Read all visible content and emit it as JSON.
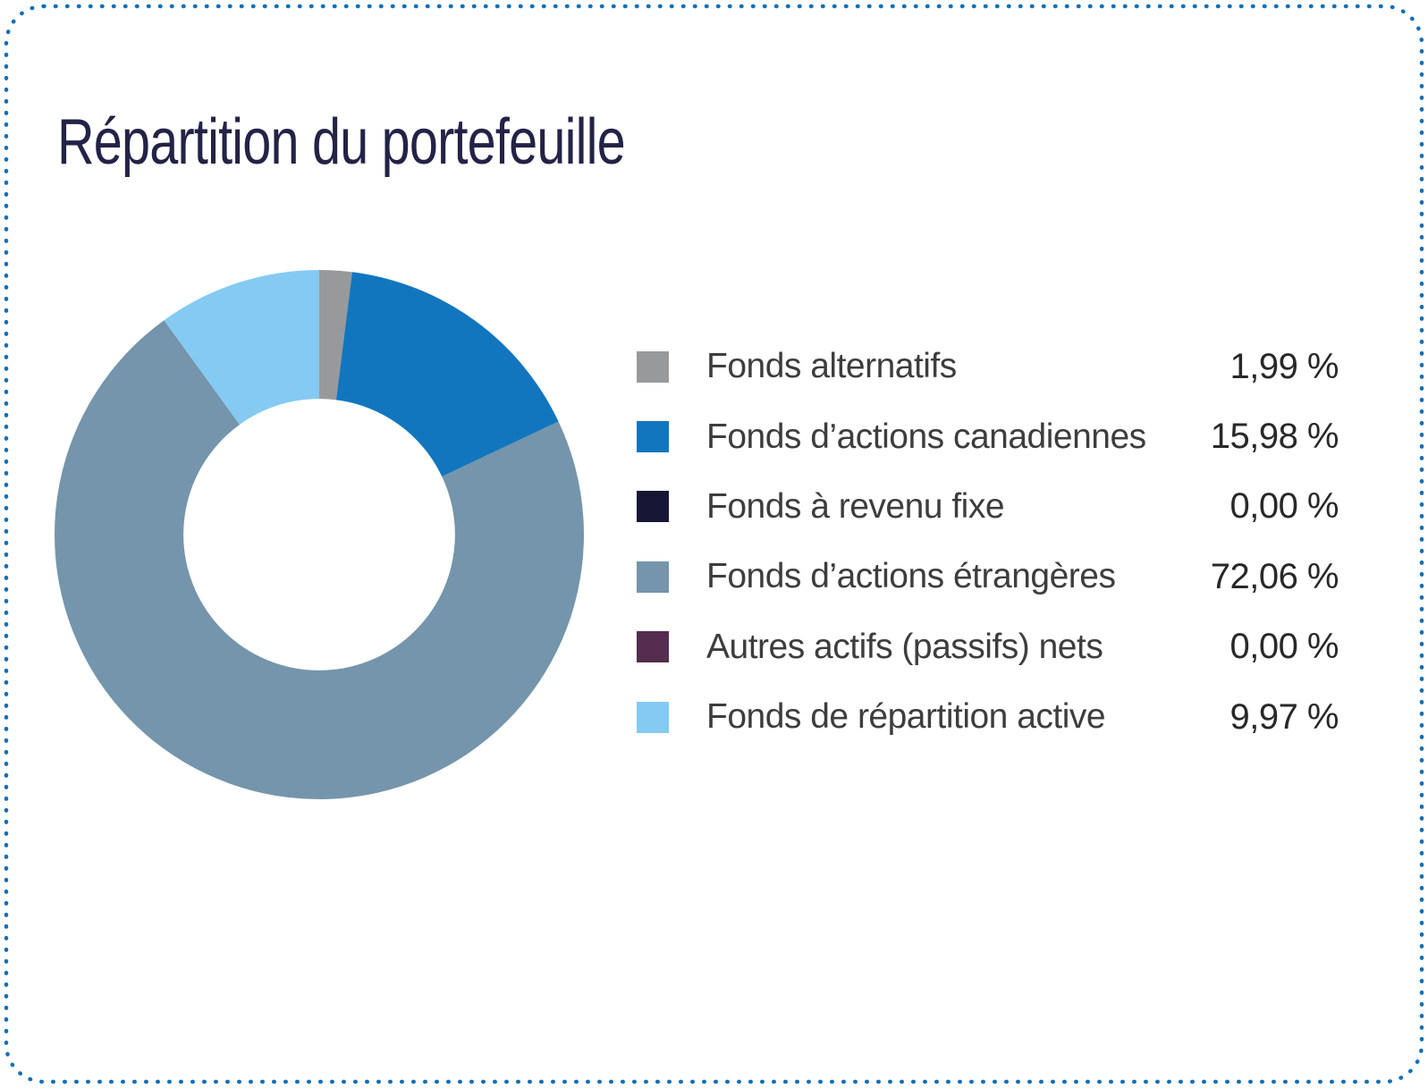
{
  "card": {
    "background": "#ffffff",
    "border_color": "#1270b8",
    "title_color": "#232347"
  },
  "chart_data": {
    "type": "pie",
    "subtype": "donut",
    "title": "Répartition du portefeuille",
    "start_angle_deg": 0,
    "direction": "clockwise",
    "inner_radius_ratio": 0.513,
    "legend_position": "right",
    "grid": false,
    "series": [
      {
        "label": "Fonds alternatifs",
        "value": 1.99,
        "display_value": "1,99 %",
        "color": "#98999b"
      },
      {
        "label": "Fonds d’actions canadiennes",
        "value": 15.98,
        "display_value": "15,98 %",
        "color": "#1276bf"
      },
      {
        "label": "Fonds à revenu fixe",
        "value": 0.0,
        "display_value": "0,00 %",
        "color": "#171735"
      },
      {
        "label": "Fonds d’actions étrangères",
        "value": 72.06,
        "display_value": "72,06 %",
        "color": "#7495ab"
      },
      {
        "label": "Autres actifs (passifs) nets",
        "value": 0.0,
        "display_value": "0,00 %",
        "color": "#542d4f"
      },
      {
        "label": "Fonds de répartition active",
        "value": 9.97,
        "display_value": "9,97 %",
        "color": "#85caf2"
      }
    ]
  }
}
